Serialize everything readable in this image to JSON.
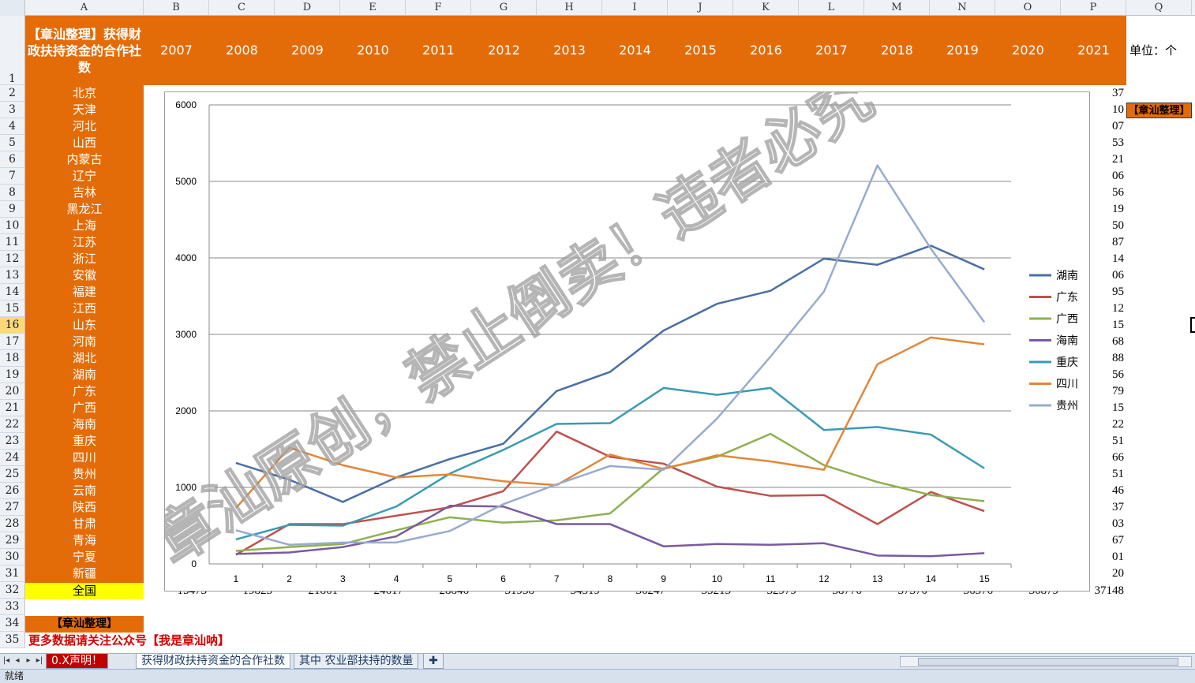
{
  "columns": [
    "A",
    "B",
    "C",
    "D",
    "E",
    "F",
    "G",
    "H",
    "I",
    "J",
    "K",
    "L",
    "M",
    "N",
    "O",
    "P",
    "Q"
  ],
  "title_cell": "【章汕整理】获得财政扶持资金的合作社数",
  "years": [
    "2007",
    "2008",
    "2009",
    "2010",
    "2011",
    "2012",
    "2013",
    "2014",
    "2015",
    "2016",
    "2017",
    "2018",
    "2019",
    "2020",
    "2021"
  ],
  "unit_label": "单位：个",
  "q3_label": "【章汕整理】",
  "provinces": [
    "北京",
    "天津",
    "河北",
    "山西",
    "内蒙古",
    "辽宁",
    "吉林",
    "黑龙江",
    "上海",
    "江苏",
    "浙江",
    "安徽",
    "福建",
    "江西",
    "山东",
    "河南",
    "湖北",
    "湖南",
    "广东",
    "广西",
    "海南",
    "重庆",
    "四川",
    "贵州",
    "云南",
    "陕西",
    "甘肃",
    "青海",
    "宁夏",
    "新疆"
  ],
  "p_column_visible": [
    "37",
    "10",
    "07",
    "53",
    "21",
    "06",
    "56",
    "19",
    "50",
    "87",
    "14",
    "06",
    "95",
    "12",
    "15",
    "68",
    "88",
    "56",
    "79",
    "15",
    "22",
    "51",
    "66",
    "51",
    "46",
    "37",
    "03",
    "67",
    "01",
    "20"
  ],
  "national_label": "全国",
  "national_values": [
    "15473",
    "19823",
    "21861",
    "24617",
    "28846",
    "31938",
    "34519",
    "36247",
    "35213",
    "32979",
    "38770",
    "37370",
    "36376",
    "36879",
    "37148"
  ],
  "footer_label": "【章汕整理】",
  "promo_text": "更多数据请关注公众号【我是章汕呐】",
  "tabs": {
    "first": "0.X声明！",
    "active": "获得财政扶持资金的合作社数",
    "second": "其中 农业部扶持的数量"
  },
  "status_text": "就绪",
  "watermark": "章汕原创，禁止倒卖！违者必究",
  "chart_data": {
    "type": "line",
    "x": [
      1,
      2,
      3,
      4,
      5,
      6,
      7,
      8,
      9,
      10,
      11,
      12,
      13,
      14,
      15
    ],
    "ylim": [
      0,
      6000
    ],
    "yticks": [
      0,
      1000,
      2000,
      3000,
      4000,
      5000,
      6000
    ],
    "grid": true,
    "legend_position": "right",
    "series": [
      {
        "name": "湖南",
        "color": "#4a6fa5",
        "values": [
          1320,
          1100,
          810,
          1130,
          1370,
          1570,
          2260,
          2510,
          3050,
          3400,
          3570,
          3990,
          3910,
          4160,
          3850
        ]
      },
      {
        "name": "广东",
        "color": "#c0504d",
        "values": [
          120,
          520,
          520,
          630,
          740,
          950,
          1730,
          1400,
          1310,
          1010,
          890,
          900,
          520,
          940,
          690
        ]
      },
      {
        "name": "广西",
        "color": "#8eb04f",
        "values": [
          170,
          220,
          260,
          440,
          610,
          540,
          570,
          660,
          1250,
          1400,
          1700,
          1290,
          1070,
          900,
          820
        ]
      },
      {
        "name": "海南",
        "color": "#7a5a9e",
        "values": [
          130,
          150,
          220,
          360,
          760,
          750,
          520,
          520,
          230,
          260,
          250,
          270,
          110,
          100,
          140
        ]
      },
      {
        "name": "重庆",
        "color": "#3a9bb3",
        "values": [
          320,
          510,
          500,
          750,
          1180,
          1490,
          1830,
          1840,
          2300,
          2210,
          2300,
          1750,
          1790,
          1690,
          1250
        ]
      },
      {
        "name": "四川",
        "color": "#e0883a",
        "values": [
          730,
          1520,
          1290,
          1130,
          1170,
          1080,
          1030,
          1430,
          1240,
          1420,
          1340,
          1230,
          2610,
          2960,
          2870
        ]
      },
      {
        "name": "贵州",
        "color": "#98abcf",
        "values": [
          440,
          250,
          280,
          280,
          430,
          780,
          1040,
          1280,
          1230,
          1900,
          2710,
          3560,
          5210,
          4120,
          3160
        ]
      }
    ]
  }
}
